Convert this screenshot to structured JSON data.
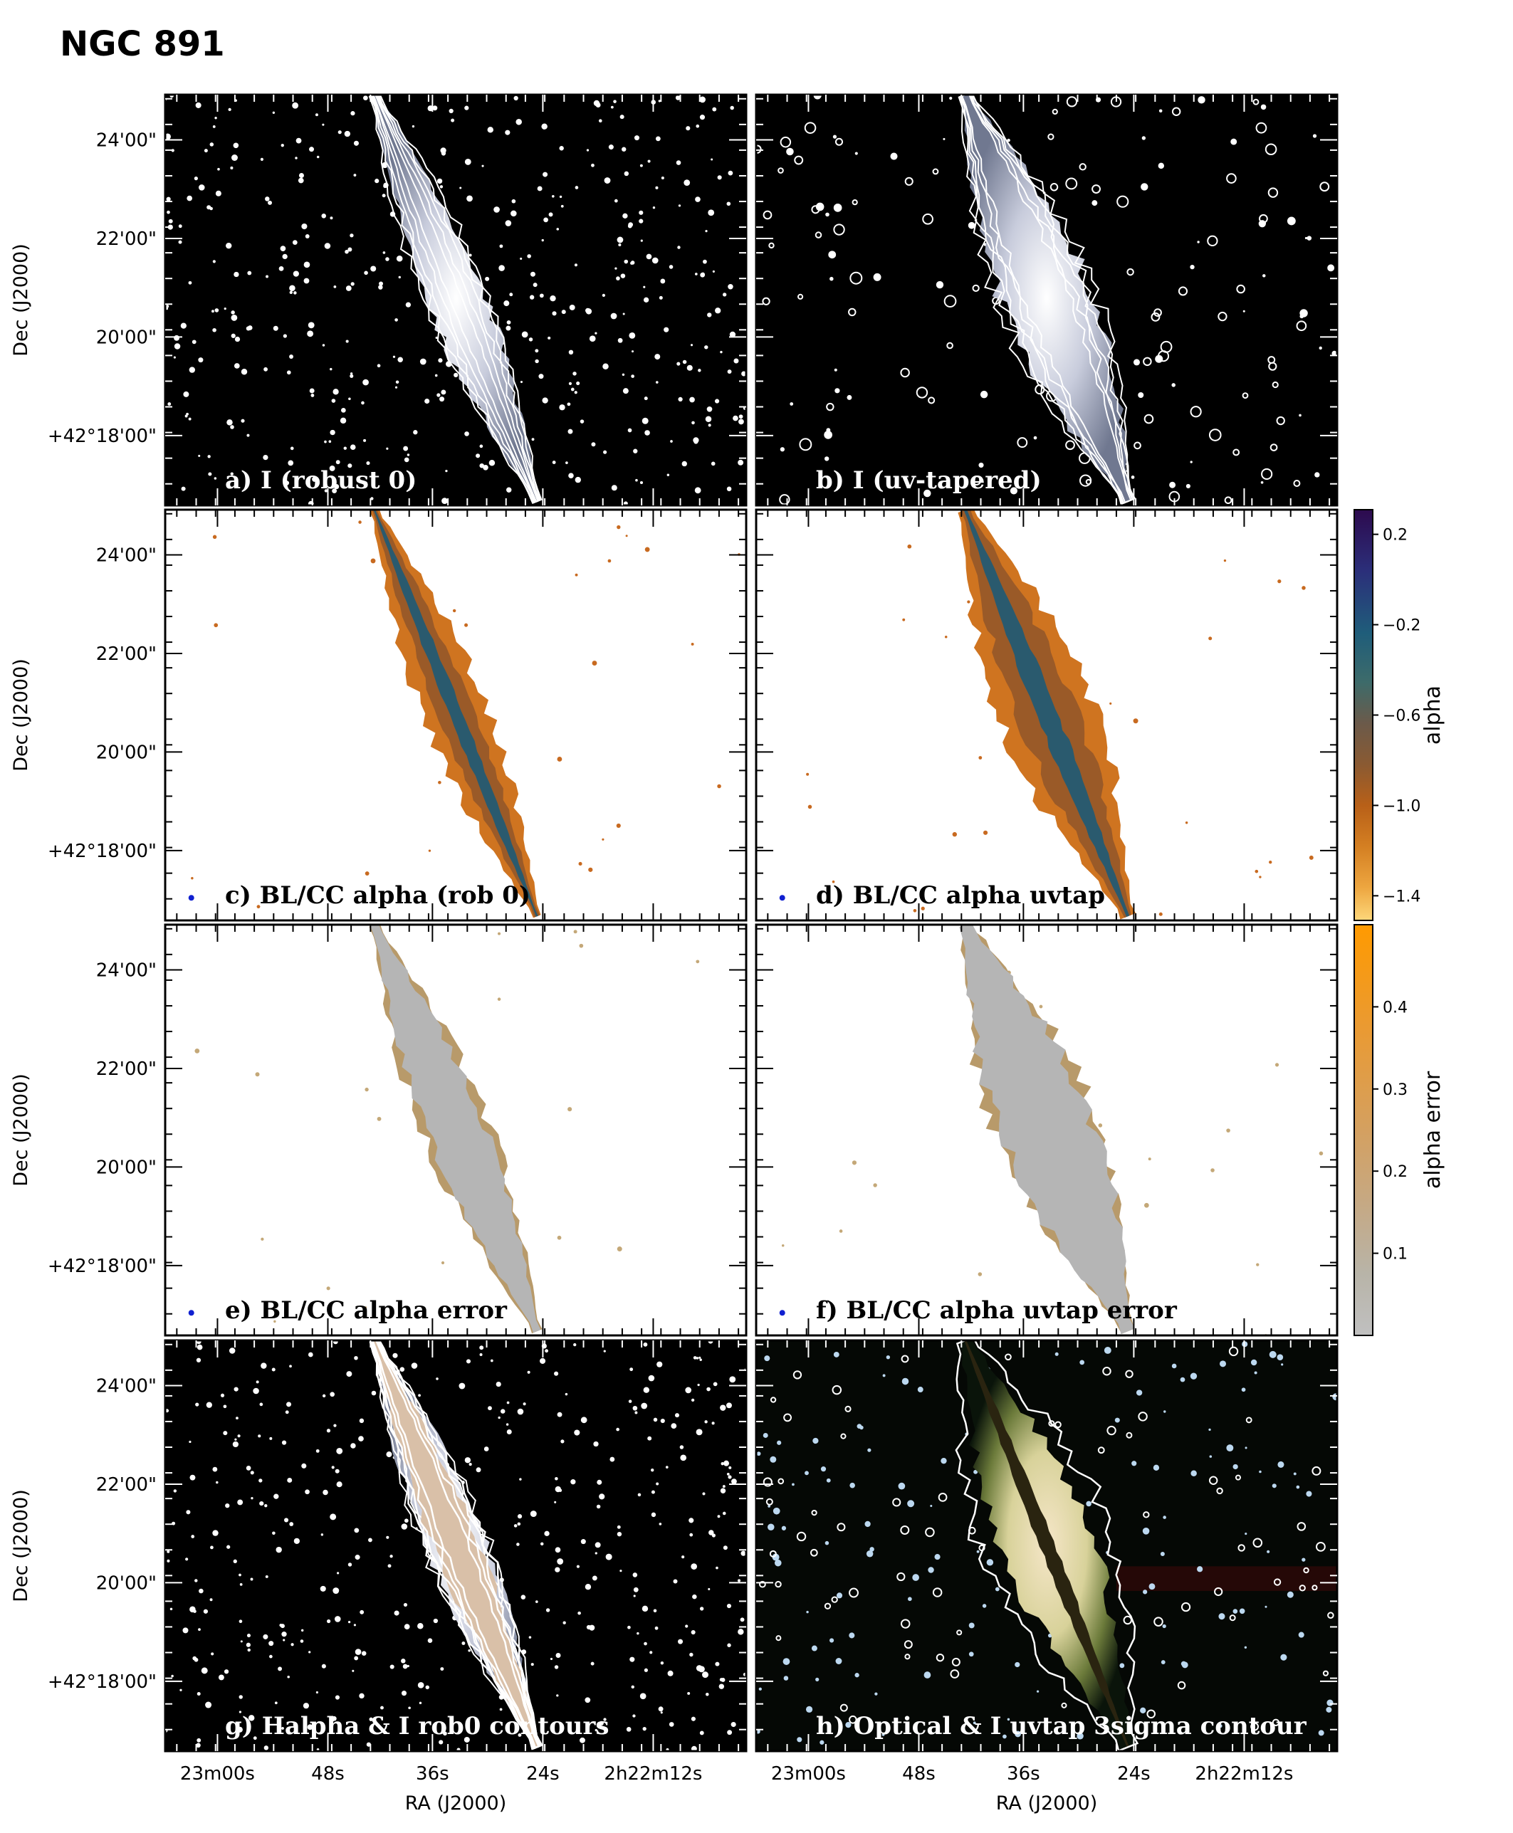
{
  "figure": {
    "title": "NGC 891",
    "dec_axis_label": "Dec (J2000)",
    "ra_axis_label": "RA (J2000)",
    "dec_ticks": [
      "24'00\"",
      "22'00\"",
      "20'00\"",
      "+42°18'00\""
    ],
    "ra_ticks": [
      "23m00s",
      "48s",
      "36s",
      "24s",
      "2h22m12s"
    ]
  },
  "panels": [
    {
      "id": "a",
      "label": "a) I (robust 0)",
      "kind": "radio-robust",
      "text_color": "#ffffff"
    },
    {
      "id": "b",
      "label": "b) I (uv-tapered)",
      "kind": "radio-taper",
      "text_color": "#ffffff"
    },
    {
      "id": "c",
      "label": "c) BL/CC alpha (rob 0)",
      "kind": "alpha-robust",
      "text_color": "#000000"
    },
    {
      "id": "d",
      "label": "d) BL/CC alpha uvtap",
      "kind": "alpha-taper",
      "text_color": "#000000"
    },
    {
      "id": "e",
      "label": "e)  BL/CC alpha error",
      "kind": "err-robust",
      "text_color": "#000000"
    },
    {
      "id": "f",
      "label": "f) BL/CC alpha uvtap error",
      "kind": "err-taper",
      "text_color": "#000000"
    },
    {
      "id": "g",
      "label": "g) Halpha & I rob0 contours",
      "kind": "halpha",
      "text_color": "#ffffff"
    },
    {
      "id": "h",
      "label": "h) Optical & I uvtap 3sigma contour",
      "kind": "optical",
      "text_color": "#ffffff"
    }
  ],
  "colorbars": [
    {
      "id": "alpha",
      "title": "alpha",
      "ticks": [
        "0.2",
        "−0.2",
        "−0.6",
        "−1.0",
        "−1.4"
      ],
      "colors": [
        "#2d0a4e",
        "#2b2f7a",
        "#1f5d7a",
        "#3d6b6a",
        "#6b5a4a",
        "#8a5a32",
        "#b86018",
        "#d47f22",
        "#eda640",
        "#fdd77a"
      ]
    },
    {
      "id": "alpha-error",
      "title": "alpha error",
      "ticks": [
        "0.4",
        "0.3",
        "0.2",
        "0.1"
      ],
      "colors": [
        "#ff9a00",
        "#ea9a32",
        "#d4a060",
        "#c4aa88",
        "#b8b4a8",
        "#c0c0c0"
      ]
    }
  ]
}
